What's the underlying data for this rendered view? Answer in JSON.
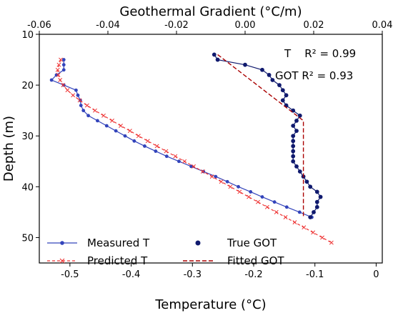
{
  "chart_data": {
    "type": "line",
    "xlabel": "Temperature (°C)",
    "x2label": "Geothermal Gradient (°C/m)",
    "ylabel": "Depth (m)",
    "xlim": [
      -0.55,
      0.01
    ],
    "x2lim": [
      -0.06,
      0.04
    ],
    "ylim": [
      55,
      10
    ],
    "y_inverted": true,
    "xticks": [
      "-0.5",
      "-0.4",
      "-0.3",
      "-0.2",
      "-0.1",
      "0"
    ],
    "x2ticks": [
      "-0.06",
      "-0.04",
      "-0.02",
      "0.00",
      "0.02",
      "0.04"
    ],
    "yticks": [
      "10",
      "20",
      "30",
      "40",
      "50"
    ],
    "grid": false,
    "legend_placement": "bottom-left",
    "annotations": [
      "T    R² = 0.99",
      "GOT R² = 0.93"
    ],
    "series": [
      {
        "name": "Measured T",
        "axis": "bottom",
        "style": "line-dot",
        "color": "#3344bb",
        "points": [
          [
            -0.51,
            15
          ],
          [
            -0.51,
            16
          ],
          [
            -0.51,
            17
          ],
          [
            -0.522,
            18
          ],
          [
            -0.53,
            19
          ],
          [
            -0.51,
            20
          ],
          [
            -0.49,
            21
          ],
          [
            -0.487,
            22
          ],
          [
            -0.483,
            23
          ],
          [
            -0.482,
            24
          ],
          [
            -0.478,
            25
          ],
          [
            -0.47,
            26
          ],
          [
            -0.455,
            27
          ],
          [
            -0.44,
            28
          ],
          [
            -0.425,
            29
          ],
          [
            -0.41,
            30
          ],
          [
            -0.395,
            31
          ],
          [
            -0.378,
            32
          ],
          [
            -0.36,
            33
          ],
          [
            -0.342,
            34
          ],
          [
            -0.322,
            35
          ],
          [
            -0.302,
            36
          ],
          [
            -0.282,
            37
          ],
          [
            -0.262,
            38
          ],
          [
            -0.243,
            39
          ],
          [
            -0.225,
            40
          ],
          [
            -0.205,
            41
          ],
          [
            -0.186,
            42
          ],
          [
            -0.166,
            43
          ],
          [
            -0.146,
            44
          ],
          [
            -0.125,
            45
          ],
          [
            -0.105,
            46
          ]
        ]
      },
      {
        "name": "Predicted T",
        "axis": "bottom",
        "style": "dashed-x",
        "color": "#ee3333",
        "points": [
          [
            -0.515,
            15
          ],
          [
            -0.518,
            16
          ],
          [
            -0.52,
            17
          ],
          [
            -0.519,
            18
          ],
          [
            -0.516,
            19
          ],
          [
            -0.511,
            20
          ],
          [
            -0.504,
            21
          ],
          [
            -0.495,
            22
          ],
          [
            -0.484,
            23
          ],
          [
            -0.472,
            24
          ],
          [
            -0.459,
            25
          ],
          [
            -0.445,
            26
          ],
          [
            -0.431,
            27
          ],
          [
            -0.417,
            28
          ],
          [
            -0.402,
            29
          ],
          [
            -0.388,
            30
          ],
          [
            -0.373,
            31
          ],
          [
            -0.358,
            32
          ],
          [
            -0.343,
            33
          ],
          [
            -0.328,
            34
          ],
          [
            -0.313,
            35
          ],
          [
            -0.298,
            36
          ],
          [
            -0.283,
            37
          ],
          [
            -0.268,
            38
          ],
          [
            -0.253,
            39
          ],
          [
            -0.238,
            40
          ],
          [
            -0.223,
            41
          ],
          [
            -0.208,
            42
          ],
          [
            -0.193,
            43
          ],
          [
            -0.178,
            44
          ],
          [
            -0.163,
            45
          ],
          [
            -0.148,
            46
          ],
          [
            -0.133,
            47
          ],
          [
            -0.118,
            48
          ],
          [
            -0.103,
            49
          ],
          [
            -0.088,
            50
          ],
          [
            -0.073,
            51
          ]
        ]
      },
      {
        "name": "True GOT",
        "axis": "top",
        "style": "line-dot-bold",
        "color": "#101a6e",
        "points": [
          [
            -0.009,
            14
          ],
          [
            -0.008,
            15
          ],
          [
            0.0,
            16
          ],
          [
            0.005,
            17
          ],
          [
            0.007,
            18
          ],
          [
            0.008,
            19
          ],
          [
            0.01,
            20
          ],
          [
            0.011,
            21
          ],
          [
            0.012,
            22
          ],
          [
            0.011,
            23
          ],
          [
            0.012,
            24
          ],
          [
            0.014,
            25
          ],
          [
            0.016,
            26
          ],
          [
            0.015,
            27
          ],
          [
            0.014,
            28
          ],
          [
            0.015,
            29
          ],
          [
            0.014,
            30
          ],
          [
            0.014,
            31
          ],
          [
            0.014,
            32
          ],
          [
            0.014,
            33
          ],
          [
            0.014,
            34
          ],
          [
            0.014,
            35
          ],
          [
            0.015,
            36
          ],
          [
            0.016,
            37
          ],
          [
            0.017,
            38
          ],
          [
            0.018,
            39
          ],
          [
            0.019,
            40
          ],
          [
            0.021,
            41
          ],
          [
            0.022,
            42
          ],
          [
            0.021,
            43
          ],
          [
            0.021,
            44
          ],
          [
            0.02,
            45
          ],
          [
            0.019,
            46
          ]
        ]
      },
      {
        "name": "Fitted GOT",
        "axis": "top",
        "style": "dashed",
        "color": "#aa0000",
        "points": [
          [
            -0.008,
            14
          ],
          [
            0.017,
            27
          ],
          [
            0.017,
            46
          ]
        ]
      }
    ]
  }
}
